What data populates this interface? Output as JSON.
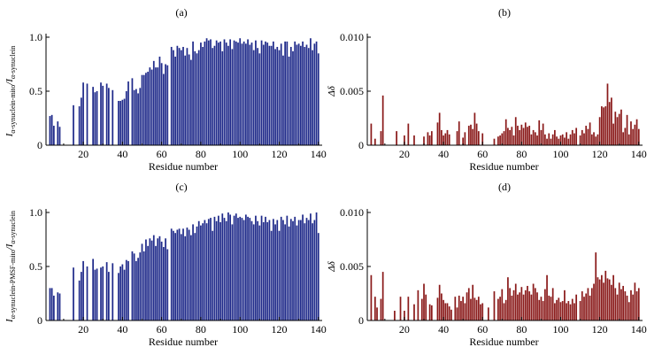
{
  "chart_data": [
    {
      "type": "bar",
      "panel_label": "(a)",
      "xlabel": "Residue number",
      "ylabel_html": "I<sub>α-synuclein-mito</sub>/I<sub>α-synuclein</sub>",
      "ylabel_main": "I",
      "ylabel_sub1": "α-synuclein-mito",
      "ylabel_mid": "/I",
      "ylabel_sub2": "α-synuclein",
      "xlim": [
        1,
        141
      ],
      "ylim": [
        0,
        1.0
      ],
      "xticks": [
        "20",
        "40",
        "60",
        "80",
        "100",
        "120",
        "140"
      ],
      "yticks": [
        "0",
        "0.5",
        "1.0"
      ],
      "color": "#1f2a8a",
      "x": [
        3,
        4,
        5,
        7,
        8,
        15,
        18,
        19,
        20,
        22,
        25,
        26,
        27,
        29,
        30,
        32,
        33,
        35,
        38,
        39,
        40,
        41,
        42,
        43,
        45,
        46,
        47,
        48,
        49,
        50,
        51,
        52,
        53,
        54,
        55,
        56,
        57,
        58,
        59,
        60,
        61,
        62,
        63,
        65,
        66,
        67,
        68,
        69,
        70,
        71,
        72,
        73,
        74,
        75,
        76,
        77,
        78,
        79,
        80,
        81,
        82,
        83,
        84,
        85,
        86,
        87,
        88,
        89,
        90,
        91,
        92,
        93,
        94,
        95,
        96,
        97,
        98,
        99,
        100,
        101,
        102,
        103,
        104,
        105,
        106,
        107,
        108,
        109,
        110,
        111,
        112,
        113,
        114,
        115,
        116,
        117,
        118,
        119,
        120,
        121,
        122,
        123,
        124,
        125,
        126,
        127,
        128,
        129,
        130,
        131,
        132,
        133,
        134,
        135,
        136,
        137,
        138,
        139,
        140
      ],
      "values": [
        0.27,
        0.28,
        0.18,
        0.22,
        0.17,
        0.37,
        0.36,
        0.44,
        0.58,
        0.57,
        0.54,
        0.49,
        0.5,
        0.58,
        0.55,
        0.57,
        0.53,
        0.51,
        0.41,
        0.41,
        0.42,
        0.43,
        0.5,
        0.59,
        0.62,
        0.51,
        0.52,
        0.48,
        0.53,
        0.65,
        0.65,
        0.67,
        0.68,
        0.72,
        0.7,
        0.78,
        0.72,
        0.72,
        0.82,
        0.76,
        0.66,
        0.75,
        0.74,
        0.91,
        0.88,
        0.82,
        0.92,
        0.9,
        0.88,
        0.91,
        0.83,
        0.9,
        0.84,
        0.79,
        0.96,
        0.87,
        0.85,
        0.88,
        0.95,
        0.91,
        0.96,
        0.99,
        0.97,
        0.98,
        0.9,
        0.92,
        0.97,
        0.95,
        0.96,
        0.87,
        0.98,
        0.95,
        0.92,
        0.98,
        0.89,
        0.97,
        0.96,
        0.95,
        0.99,
        0.94,
        0.96,
        0.94,
        0.98,
        0.93,
        0.95,
        0.88,
        0.97,
        0.9,
        0.85,
        0.97,
        0.93,
        0.96,
        0.95,
        0.92,
        0.92,
        0.96,
        0.89,
        0.91,
        0.88,
        0.94,
        0.83,
        0.96,
        0.96,
        0.82,
        0.91,
        0.87,
        0.96,
        0.93,
        0.94,
        0.92,
        0.96,
        0.91,
        0.93,
        0.9,
        0.99,
        0.88,
        0.94,
        0.96,
        0.85
      ]
    },
    {
      "type": "bar",
      "panel_label": "(b)",
      "xlabel": "Residue number",
      "ylabel_main": "Δδ",
      "xlim": [
        1,
        141
      ],
      "ylim": [
        0,
        0.01
      ],
      "xticks": [
        "20",
        "40",
        "60",
        "80",
        "100",
        "120",
        "140"
      ],
      "yticks": [
        "0",
        "0.005",
        "0.010"
      ],
      "color": "#8a1a1a",
      "x": [
        3,
        5,
        8,
        9,
        16,
        20,
        22,
        25,
        30,
        32,
        33,
        34,
        37,
        38,
        39,
        40,
        41,
        42,
        43,
        47,
        48,
        50,
        51,
        53,
        54,
        55,
        56,
        57,
        58,
        60,
        66,
        68,
        69,
        70,
        71,
        72,
        73,
        74,
        75,
        76,
        77,
        78,
        79,
        80,
        81,
        82,
        83,
        84,
        85,
        86,
        87,
        88,
        89,
        90,
        91,
        92,
        93,
        94,
        95,
        96,
        97,
        98,
        99,
        100,
        101,
        102,
        103,
        104,
        105,
        106,
        107,
        108,
        110,
        111,
        112,
        113,
        114,
        115,
        116,
        117,
        118,
        119,
        120,
        121,
        122,
        123,
        124,
        125,
        126,
        127,
        128,
        129,
        130,
        131,
        132,
        133,
        134,
        135,
        136,
        137,
        138,
        139,
        140
      ],
      "values": [
        0.002,
        0.0006,
        0.0013,
        0.0046,
        0.0013,
        0.0009,
        0.002,
        0.0009,
        0.0008,
        0.0012,
        0.0009,
        0.0013,
        0.0021,
        0.003,
        0.0014,
        0.0009,
        0.0011,
        0.0014,
        0.001,
        0.0013,
        0.0022,
        0.0007,
        0.0012,
        0.0018,
        0.0019,
        0.0015,
        0.003,
        0.002,
        0.0013,
        0.0011,
        0.0006,
        0.0008,
        0.0009,
        0.0011,
        0.0013,
        0.0024,
        0.0016,
        0.0014,
        0.0017,
        0.0009,
        0.0026,
        0.0018,
        0.0014,
        0.0019,
        0.0016,
        0.0021,
        0.0017,
        0.0018,
        0.001,
        0.0014,
        0.0012,
        0.0009,
        0.0023,
        0.0014,
        0.002,
        0.001,
        0.0006,
        0.0011,
        0.0006,
        0.001,
        0.0014,
        0.0008,
        0.0006,
        0.0009,
        0.001,
        0.0007,
        0.0012,
        0.0006,
        0.001,
        0.0014,
        0.0011,
        0.0016,
        0.0009,
        0.0014,
        0.0011,
        0.0018,
        0.0015,
        0.0021,
        0.001,
        0.0012,
        0.0008,
        0.001,
        0.0026,
        0.0036,
        0.0035,
        0.0036,
        0.0057,
        0.004,
        0.0044,
        0.002,
        0.0031,
        0.0026,
        0.0029,
        0.0033,
        0.0012,
        0.0016,
        0.0028,
        0.001,
        0.0022,
        0.0015,
        0.0019,
        0.0024,
        0.0015
      ]
    },
    {
      "type": "bar",
      "panel_label": "(c)",
      "xlabel": "Residue number",
      "ylabel_main": "I",
      "ylabel_sub1": "α-synuclein-PMSF-mito",
      "ylabel_mid": "/I",
      "ylabel_sub2": "α-synuclein",
      "xlim": [
        1,
        141
      ],
      "ylim": [
        0,
        1.0
      ],
      "xticks": [
        "20",
        "40",
        "60",
        "80",
        "100",
        "120",
        "140"
      ],
      "yticks": [
        "0",
        "0.5",
        "1.0"
      ],
      "color": "#1f2a8a",
      "x": [
        3,
        4,
        5,
        7,
        8,
        15,
        18,
        19,
        20,
        22,
        25,
        26,
        27,
        29,
        30,
        32,
        33,
        35,
        38,
        39,
        40,
        41,
        42,
        43,
        45,
        46,
        47,
        48,
        49,
        50,
        51,
        52,
        53,
        54,
        55,
        56,
        57,
        58,
        59,
        60,
        61,
        62,
        63,
        65,
        66,
        67,
        68,
        69,
        70,
        71,
        72,
        73,
        74,
        75,
        76,
        77,
        78,
        79,
        80,
        81,
        82,
        83,
        84,
        85,
        86,
        87,
        88,
        89,
        90,
        91,
        92,
        93,
        94,
        95,
        96,
        97,
        98,
        99,
        100,
        101,
        102,
        103,
        104,
        105,
        106,
        107,
        108,
        109,
        110,
        111,
        112,
        113,
        114,
        115,
        116,
        117,
        118,
        119,
        120,
        121,
        122,
        123,
        124,
        125,
        126,
        127,
        128,
        129,
        130,
        131,
        132,
        133,
        134,
        135,
        136,
        137,
        138,
        139,
        140
      ],
      "values": [
        0.3,
        0.3,
        0.23,
        0.26,
        0.25,
        0.49,
        0.37,
        0.45,
        0.55,
        0.5,
        0.57,
        0.47,
        0.48,
        0.49,
        0.5,
        0.54,
        0.45,
        0.53,
        0.44,
        0.5,
        0.52,
        0.47,
        0.56,
        0.55,
        0.64,
        0.62,
        0.55,
        0.58,
        0.63,
        0.71,
        0.64,
        0.75,
        0.69,
        0.76,
        0.74,
        0.79,
        0.69,
        0.76,
        0.78,
        0.73,
        0.68,
        0.76,
        0.66,
        0.85,
        0.83,
        0.81,
        0.84,
        0.85,
        0.8,
        0.85,
        0.78,
        0.86,
        0.84,
        0.79,
        0.89,
        0.81,
        0.87,
        0.92,
        0.88,
        0.9,
        0.93,
        0.9,
        0.94,
        0.95,
        0.83,
        0.96,
        0.92,
        0.97,
        0.91,
        0.99,
        0.95,
        0.92,
        1.0,
        0.98,
        0.89,
        0.97,
        0.99,
        0.95,
        0.96,
        0.95,
        0.93,
        0.98,
        0.96,
        0.95,
        0.92,
        0.89,
        0.97,
        0.92,
        0.88,
        0.97,
        0.91,
        0.96,
        0.91,
        0.93,
        0.83,
        0.94,
        0.89,
        0.93,
        0.83,
        0.96,
        0.93,
        0.89,
        0.97,
        0.87,
        0.94,
        0.92,
        0.96,
        0.88,
        0.93,
        0.93,
        0.98,
        0.9,
        0.95,
        0.93,
        0.99,
        0.9,
        0.93,
        1.0,
        0.81
      ]
    },
    {
      "type": "bar",
      "panel_label": "(d)",
      "xlabel": "Residue number",
      "ylabel_main": "Δδ",
      "xlim": [
        1,
        141
      ],
      "ylim": [
        0,
        0.01
      ],
      "xticks": [
        "20",
        "40",
        "60",
        "80",
        "100",
        "120",
        "140"
      ],
      "yticks": [
        "0",
        "0.005",
        "0.010"
      ],
      "color": "#8a1a1a",
      "x": [
        3,
        5,
        6,
        8,
        9,
        15,
        18,
        20,
        22,
        25,
        27,
        29,
        30,
        31,
        33,
        34,
        37,
        38,
        39,
        40,
        41,
        42,
        43,
        44,
        46,
        47,
        48,
        49,
        50,
        51,
        52,
        53,
        54,
        55,
        56,
        57,
        58,
        59,
        60,
        63,
        66,
        68,
        69,
        70,
        71,
        72,
        73,
        74,
        75,
        76,
        77,
        78,
        79,
        80,
        81,
        82,
        83,
        84,
        85,
        86,
        87,
        88,
        89,
        90,
        91,
        92,
        93,
        94,
        95,
        96,
        97,
        98,
        99,
        100,
        101,
        102,
        103,
        104,
        105,
        106,
        107,
        108,
        110,
        111,
        112,
        113,
        114,
        115,
        116,
        117,
        118,
        119,
        120,
        121,
        122,
        123,
        124,
        125,
        126,
        127,
        128,
        129,
        130,
        131,
        132,
        133,
        134,
        135,
        136,
        137,
        138,
        139,
        140
      ],
      "values": [
        0.0042,
        0.0022,
        0.0012,
        0.002,
        0.0045,
        0.0009,
        0.0022,
        0.0009,
        0.0022,
        0.0015,
        0.0028,
        0.002,
        0.0034,
        0.0024,
        0.0015,
        0.0014,
        0.0021,
        0.0033,
        0.0025,
        0.0019,
        0.0016,
        0.0016,
        0.0013,
        0.001,
        0.0022,
        0.0012,
        0.0023,
        0.0018,
        0.0022,
        0.0016,
        0.0026,
        0.003,
        0.002,
        0.0033,
        0.0021,
        0.0019,
        0.0022,
        0.0015,
        0.0016,
        0.0012,
        0.0027,
        0.002,
        0.0022,
        0.0029,
        0.0016,
        0.0019,
        0.004,
        0.003,
        0.0023,
        0.0028,
        0.0034,
        0.0024,
        0.0026,
        0.0031,
        0.0024,
        0.0028,
        0.0032,
        0.0027,
        0.0024,
        0.0034,
        0.003,
        0.0026,
        0.0019,
        0.0022,
        0.0018,
        0.0029,
        0.0042,
        0.0023,
        0.0022,
        0.003,
        0.0016,
        0.0019,
        0.0021,
        0.0017,
        0.0018,
        0.0028,
        0.0016,
        0.0018,
        0.0015,
        0.002,
        0.0016,
        0.0024,
        0.0018,
        0.0027,
        0.0022,
        0.0025,
        0.003,
        0.0023,
        0.003,
        0.0034,
        0.0063,
        0.004,
        0.0038,
        0.0042,
        0.0035,
        0.0046,
        0.0039,
        0.0038,
        0.0033,
        0.0042,
        0.003,
        0.0024,
        0.0035,
        0.0029,
        0.0032,
        0.0027,
        0.0023,
        0.0017,
        0.0028,
        0.0024,
        0.0035,
        0.0027,
        0.003
      ]
    }
  ]
}
